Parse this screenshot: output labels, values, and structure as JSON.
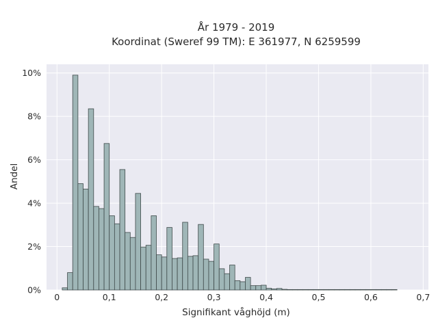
{
  "chart_data": {
    "type": "bar",
    "title": "År 1979 - 2019",
    "subtitle": "Koordinat (Sweref 99 TM): E 361977, N 6259599",
    "xlabel": "Signifikant våghöjd (m)",
    "ylabel": "Andel",
    "xlim": [
      -0.02,
      0.71
    ],
    "ylim": [
      0,
      10.4
    ],
    "x_ticks": [
      "0",
      "0,1",
      "0,2",
      "0,3",
      "0,4",
      "0,5",
      "0,6",
      "0,7"
    ],
    "x_tick_values": [
      0,
      0.1,
      0.2,
      0.3,
      0.4,
      0.5,
      0.6,
      0.7
    ],
    "y_ticks": [
      "0%",
      "2%",
      "4%",
      "6%",
      "8%",
      "10%"
    ],
    "y_tick_values": [
      0,
      2,
      4,
      6,
      8,
      10
    ],
    "bin_width": 0.01,
    "bin_starts": [
      0.01,
      0.02,
      0.03,
      0.04,
      0.05,
      0.06,
      0.07,
      0.08,
      0.09,
      0.1,
      0.11,
      0.12,
      0.13,
      0.14,
      0.15,
      0.16,
      0.17,
      0.18,
      0.19,
      0.2,
      0.21,
      0.22,
      0.23,
      0.24,
      0.25,
      0.26,
      0.27,
      0.28,
      0.29,
      0.3,
      0.31,
      0.32,
      0.33,
      0.34,
      0.35,
      0.36,
      0.37,
      0.38,
      0.39,
      0.4,
      0.41,
      0.42,
      0.43,
      0.44,
      0.45,
      0.46,
      0.47,
      0.48,
      0.49,
      0.5,
      0.51,
      0.52,
      0.53,
      0.54,
      0.55,
      0.56,
      0.57,
      0.58,
      0.59,
      0.6,
      0.61,
      0.62,
      0.63,
      0.64
    ],
    "values": [
      0.1,
      0.8,
      9.9,
      4.9,
      4.65,
      8.35,
      3.85,
      3.75,
      6.75,
      3.42,
      3.05,
      5.55,
      2.65,
      2.42,
      4.45,
      1.98,
      2.06,
      3.42,
      1.62,
      1.52,
      2.88,
      1.45,
      1.48,
      3.12,
      1.55,
      1.58,
      3.02,
      1.42,
      1.32,
      2.12,
      0.98,
      0.75,
      1.15,
      0.43,
      0.38,
      0.58,
      0.2,
      0.2,
      0.22,
      0.08,
      0.05,
      0.07,
      0.03,
      0.02,
      0.02,
      0.02,
      0.02,
      0.02,
      0.02,
      0.02,
      0.02,
      0.02,
      0.02,
      0.02,
      0.02,
      0.02,
      0.02,
      0.02,
      0.02,
      0.02,
      0.02,
      0.02,
      0.02,
      0.02
    ],
    "grid": true,
    "colors": {
      "bar_fill": "#9fb6b7",
      "bar_stroke": "#3f4a4a",
      "plot_background": "#eaeaf2",
      "grid": "#ffffff"
    }
  }
}
